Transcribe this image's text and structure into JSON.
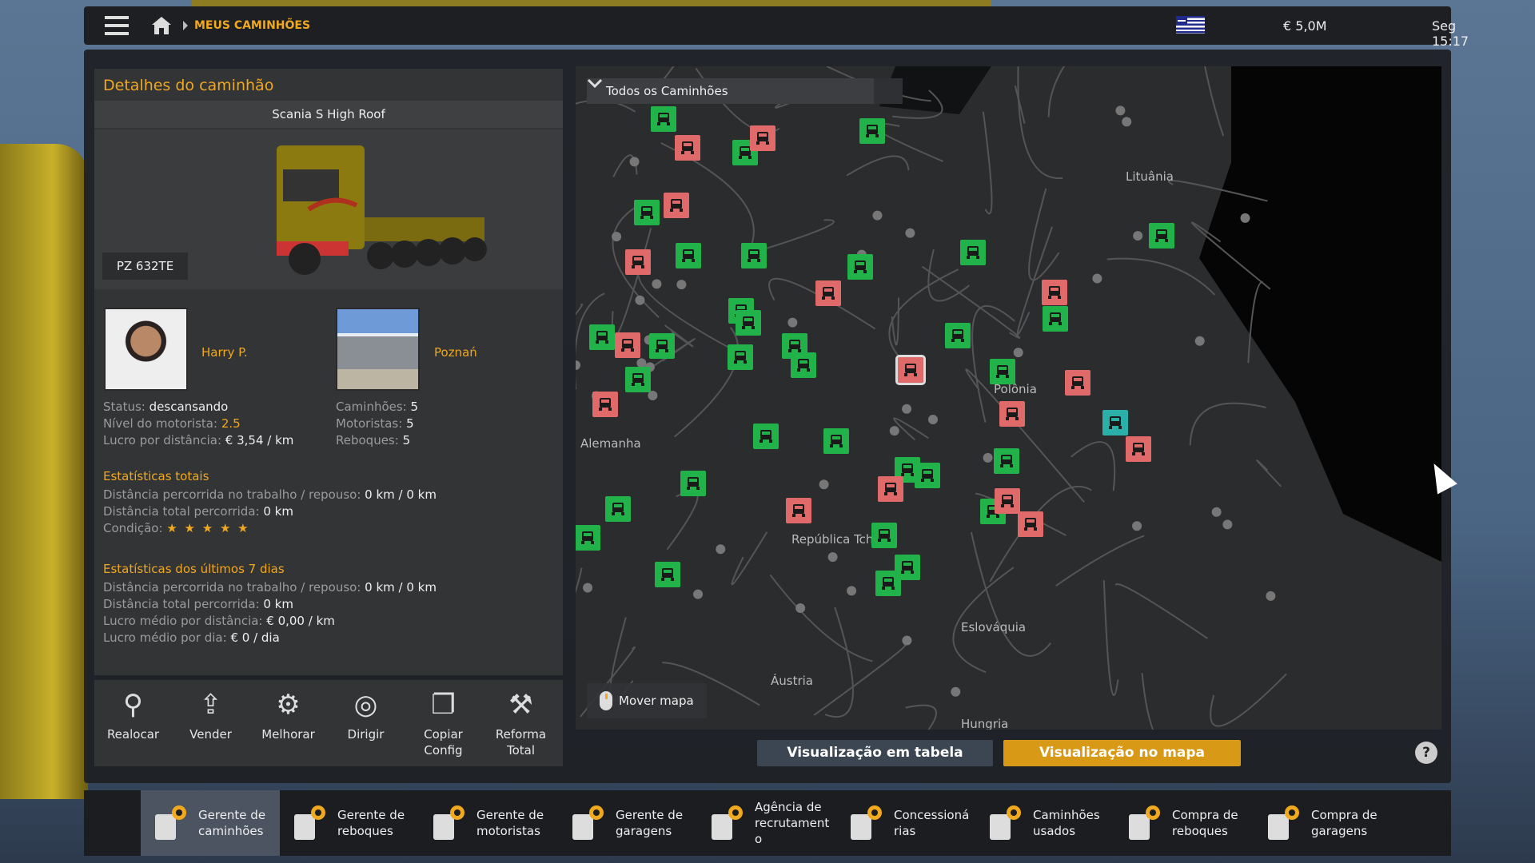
{
  "topbar": {
    "breadcrumb": "MEUS CAMINHÕES",
    "money": "€ 5,0M",
    "clock": "Seg 15:17"
  },
  "panel": {
    "title": "Detalhes do caminhão",
    "model": "Scania S High Roof",
    "plate": "PZ 632TE",
    "driver": {
      "name": "Harry P.",
      "status_label": "Status:",
      "status": "descansando",
      "level_label": "Nível do motorista:",
      "level": "2.5",
      "profit_label": "Lucro por distância:",
      "profit": "€ 3,54 / km"
    },
    "garage": {
      "name": "Poznań",
      "trucks_label": "Caminhões:",
      "trucks": "5",
      "drivers_label": "Motoristas:",
      "drivers": "5",
      "trailers_label": "Reboques:",
      "trailers": "5"
    },
    "total": {
      "title": "Estatísticas totais",
      "l1": "Distância percorrida no trabalho / repouso:",
      "v1": "0 km / 0 km",
      "l2": "Distância total percorrida:",
      "v2": "0 km",
      "l3": "Condição:",
      "stars": "★ ★ ★ ★ ★",
      "condition_stars": 5
    },
    "week": {
      "title": "Estatísticas dos últimos 7 dias",
      "l1": "Distância percorrida no trabalho / repouso:",
      "v1": "0 km / 0 km",
      "l2": "Distância total percorrida:",
      "v2": "0 km",
      "l3": "Lucro médio por distância:",
      "v3": "€ 0,00 / km",
      "l4": "Lucro médio por dia:",
      "v4": "€ 0 / dia"
    }
  },
  "actions": [
    {
      "label": "Realocar",
      "icon": "relocate-icon"
    },
    {
      "label": "Vender",
      "icon": "sell-icon"
    },
    {
      "label": "Melhorar",
      "icon": "upgrade-icon"
    },
    {
      "label": "Dirigir",
      "icon": "steering-wheel-icon"
    },
    {
      "label": "Copiar\nConfig",
      "icon": "copy-config-icon"
    },
    {
      "label": "Reforma\nTotal",
      "icon": "repair-icon"
    }
  ],
  "map": {
    "filter": "Todos os Caminhões",
    "move_hint": "Mover mapa",
    "labels": {
      "lt": "Lituânia",
      "pl": "Polônia",
      "de": "Alemanha",
      "cz": "República Tcheca",
      "sk": "Eslováquia",
      "at": "Áustria",
      "hu": "Hungria"
    },
    "colors": {
      "idle": "#21b34a",
      "busy": "#e06a6a",
      "selected": "#2ab0a8"
    }
  },
  "view": {
    "table": "Visualização em tabela",
    "map": "Visualização no mapa",
    "help": "?"
  },
  "nav": [
    {
      "label": "Gerente de\ncaminhões",
      "active": true
    },
    {
      "label": "Gerente de\nreboques"
    },
    {
      "label": "Gerente de\nmotoristas"
    },
    {
      "label": "Gerente de\ngaragens"
    },
    {
      "label": "Agência de\nrecrutament\no"
    },
    {
      "label": "Concessioná\nrias"
    },
    {
      "label": "Caminhões\nusados"
    },
    {
      "label": "Compra de\nreboques"
    },
    {
      "label": "Compra de\ngaragens"
    }
  ]
}
